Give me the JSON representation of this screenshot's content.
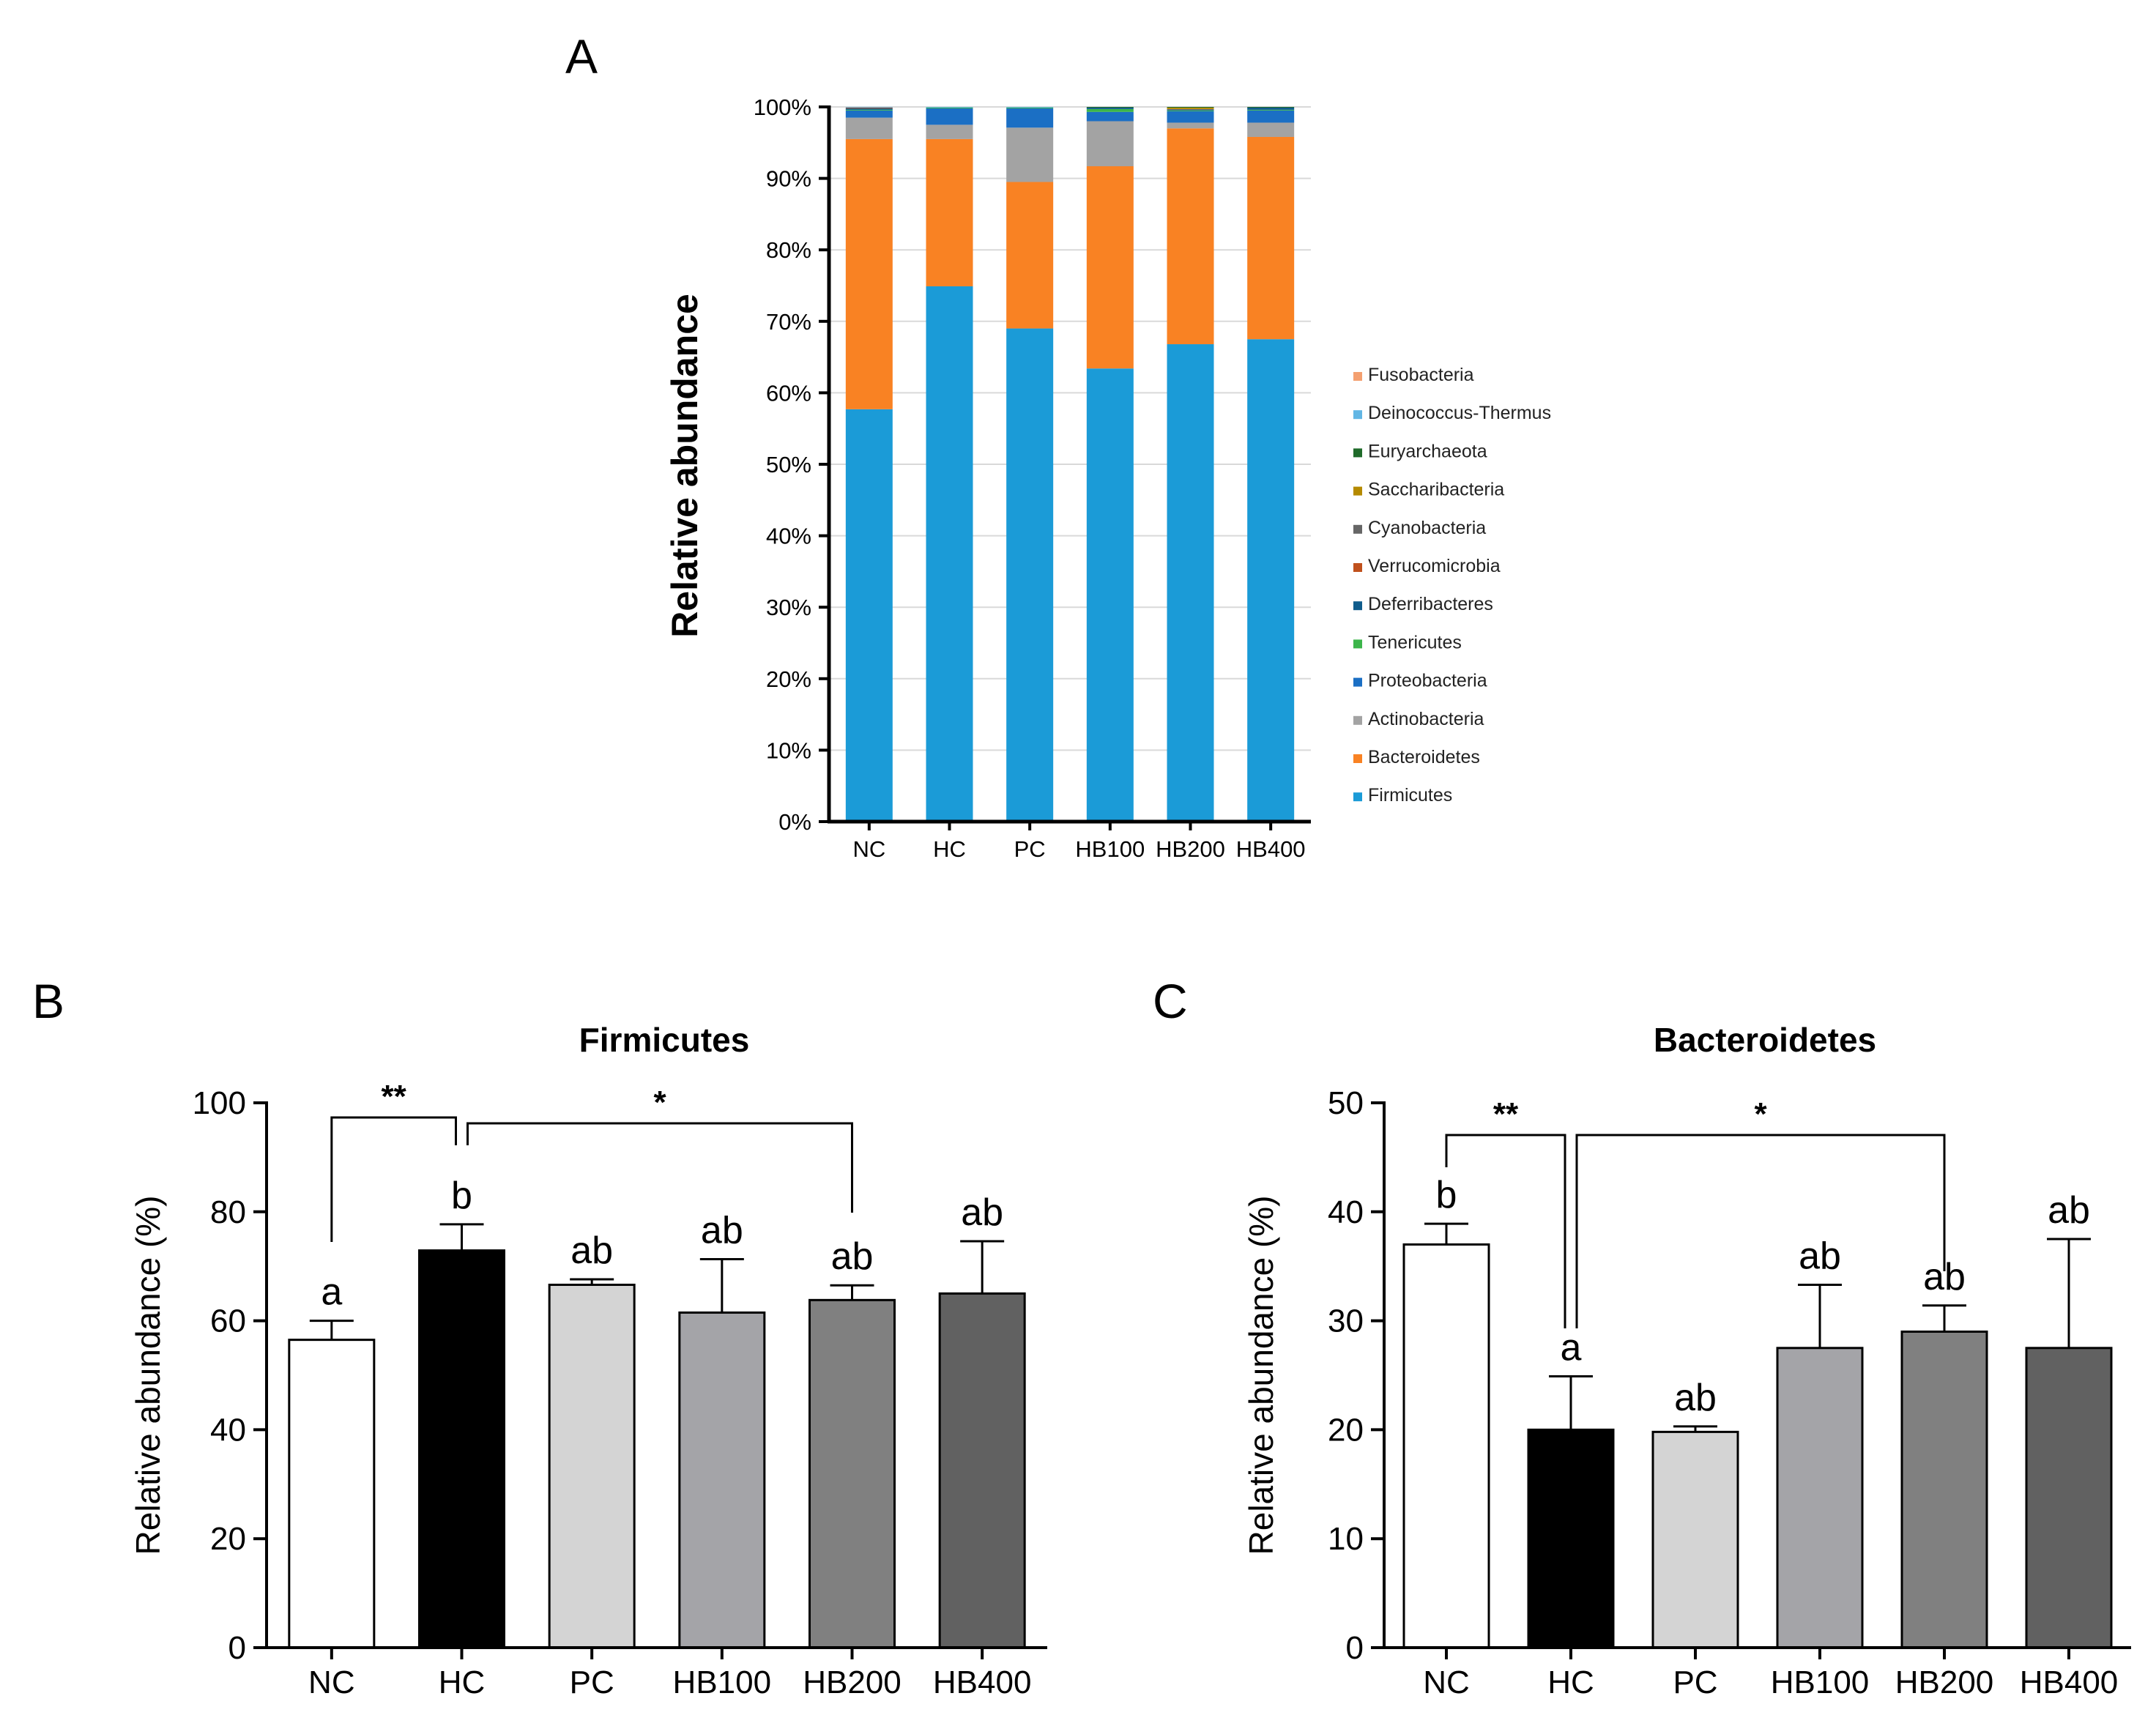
{
  "figure_letters": {
    "a": "A",
    "b": "B",
    "c": "C"
  },
  "chart_data": [
    {
      "panel": "A",
      "type": "bar",
      "stacked": true,
      "ylabel": "Relative abundance",
      "xlabel": "",
      "ylim": [
        0,
        100
      ],
      "yticks": [
        "0%",
        "10%",
        "20%",
        "30%",
        "40%",
        "50%",
        "60%",
        "70%",
        "80%",
        "90%",
        "100%"
      ],
      "categories": [
        "NC",
        "HC",
        "PC",
        "HB100",
        "HB200",
        "HB400"
      ],
      "legend_position": "right",
      "series": [
        {
          "name": "Firmicutes",
          "color": "#1b9bd7",
          "values": [
            57.7,
            74.9,
            69.0,
            63.4,
            66.8,
            67.5
          ]
        },
        {
          "name": "Bacteroidetes",
          "color": "#f98223",
          "values": [
            37.8,
            20.6,
            20.5,
            28.3,
            30.2,
            28.3
          ]
        },
        {
          "name": "Actinobacteria",
          "color": "#a3a3a3",
          "values": [
            3.0,
            2.0,
            7.6,
            6.3,
            0.8,
            2.0
          ]
        },
        {
          "name": "Proteobacteria",
          "color": "#1b6fc4",
          "values": [
            1.0,
            2.3,
            2.7,
            1.3,
            1.6,
            1.7
          ]
        },
        {
          "name": "Tenericutes",
          "color": "#3cb54a",
          "values": [
            0.1,
            0.1,
            0.1,
            0.4,
            0.1,
            0.1
          ]
        },
        {
          "name": "Deferribacteres",
          "color": "#0f5c8c",
          "values": [
            0.2,
            0.0,
            0.0,
            0.2,
            0.1,
            0.3
          ]
        },
        {
          "name": "Verrucomicrobia",
          "color": "#c0511d",
          "values": [
            0.1,
            0.0,
            0.0,
            0.0,
            0.0,
            0.0
          ]
        },
        {
          "name": "Cyanobacteria",
          "color": "#666666",
          "values": [
            0.0,
            0.0,
            0.0,
            0.0,
            0.1,
            0.0
          ]
        },
        {
          "name": "Saccharibacteria",
          "color": "#b58a00",
          "values": [
            0.0,
            0.0,
            0.0,
            0.0,
            0.2,
            0.0
          ]
        },
        {
          "name": "Euryarchaeota",
          "color": "#1f6b2a",
          "values": [
            0.0,
            0.0,
            0.0,
            0.1,
            0.1,
            0.1
          ]
        },
        {
          "name": "Deinococcus-Thermus",
          "color": "#62b6e4",
          "values": [
            0.1,
            0.1,
            0.1,
            0.0,
            0.0,
            0.0
          ]
        },
        {
          "name": "Fusobacteria",
          "color": "#f4a070",
          "values": [
            0.0,
            0.0,
            0.0,
            0.0,
            0.0,
            0.0
          ]
        }
      ]
    },
    {
      "panel": "B",
      "type": "bar",
      "title": "Firmicutes",
      "ylabel": "Relative abundance (%)",
      "xlabel": "",
      "ylim": [
        0,
        100
      ],
      "yticks": [
        "0",
        "20",
        "40",
        "60",
        "80",
        "100"
      ],
      "categories": [
        "NC",
        "HC",
        "PC",
        "HB100",
        "HB200",
        "HB400"
      ],
      "values": [
        56.5,
        72.9,
        66.6,
        61.5,
        63.8,
        65.0
      ],
      "errors": [
        3.5,
        4.8,
        1.0,
        9.8,
        2.7,
        9.6
      ],
      "bar_colors": [
        "#ffffff",
        "#000000",
        "#d4d4d4",
        "#a4a4a8",
        "#808080",
        "#616161"
      ],
      "labels": [
        "a",
        "b",
        "ab",
        "ab",
        "ab",
        "ab"
      ],
      "significance": [
        {
          "from": "NC",
          "to": "HC",
          "label": "**"
        },
        {
          "from": "HC",
          "to": "HB200",
          "label": "*"
        }
      ]
    },
    {
      "panel": "C",
      "type": "bar",
      "title": "Bacteroidetes",
      "ylabel": "Relative abundance (%)",
      "xlabel": "",
      "ylim": [
        0,
        50
      ],
      "yticks": [
        "0",
        "10",
        "20",
        "30",
        "40",
        "50"
      ],
      "categories": [
        "NC",
        "HC",
        "PC",
        "HB100",
        "HB200",
        "HB400"
      ],
      "values": [
        37.0,
        20.0,
        19.8,
        27.5,
        29.0,
        27.5
      ],
      "errors": [
        1.9,
        4.9,
        0.5,
        5.8,
        2.4,
        10.0
      ],
      "bar_colors": [
        "#ffffff",
        "#000000",
        "#d4d4d4",
        "#a4a4a8",
        "#808080",
        "#616161"
      ],
      "labels": [
        "b",
        "a",
        "ab",
        "ab",
        "ab",
        "ab"
      ],
      "significance": [
        {
          "from": "NC",
          "to": "HC",
          "label": "**"
        },
        {
          "from": "HC",
          "to": "HB200",
          "label": "*"
        }
      ]
    }
  ]
}
